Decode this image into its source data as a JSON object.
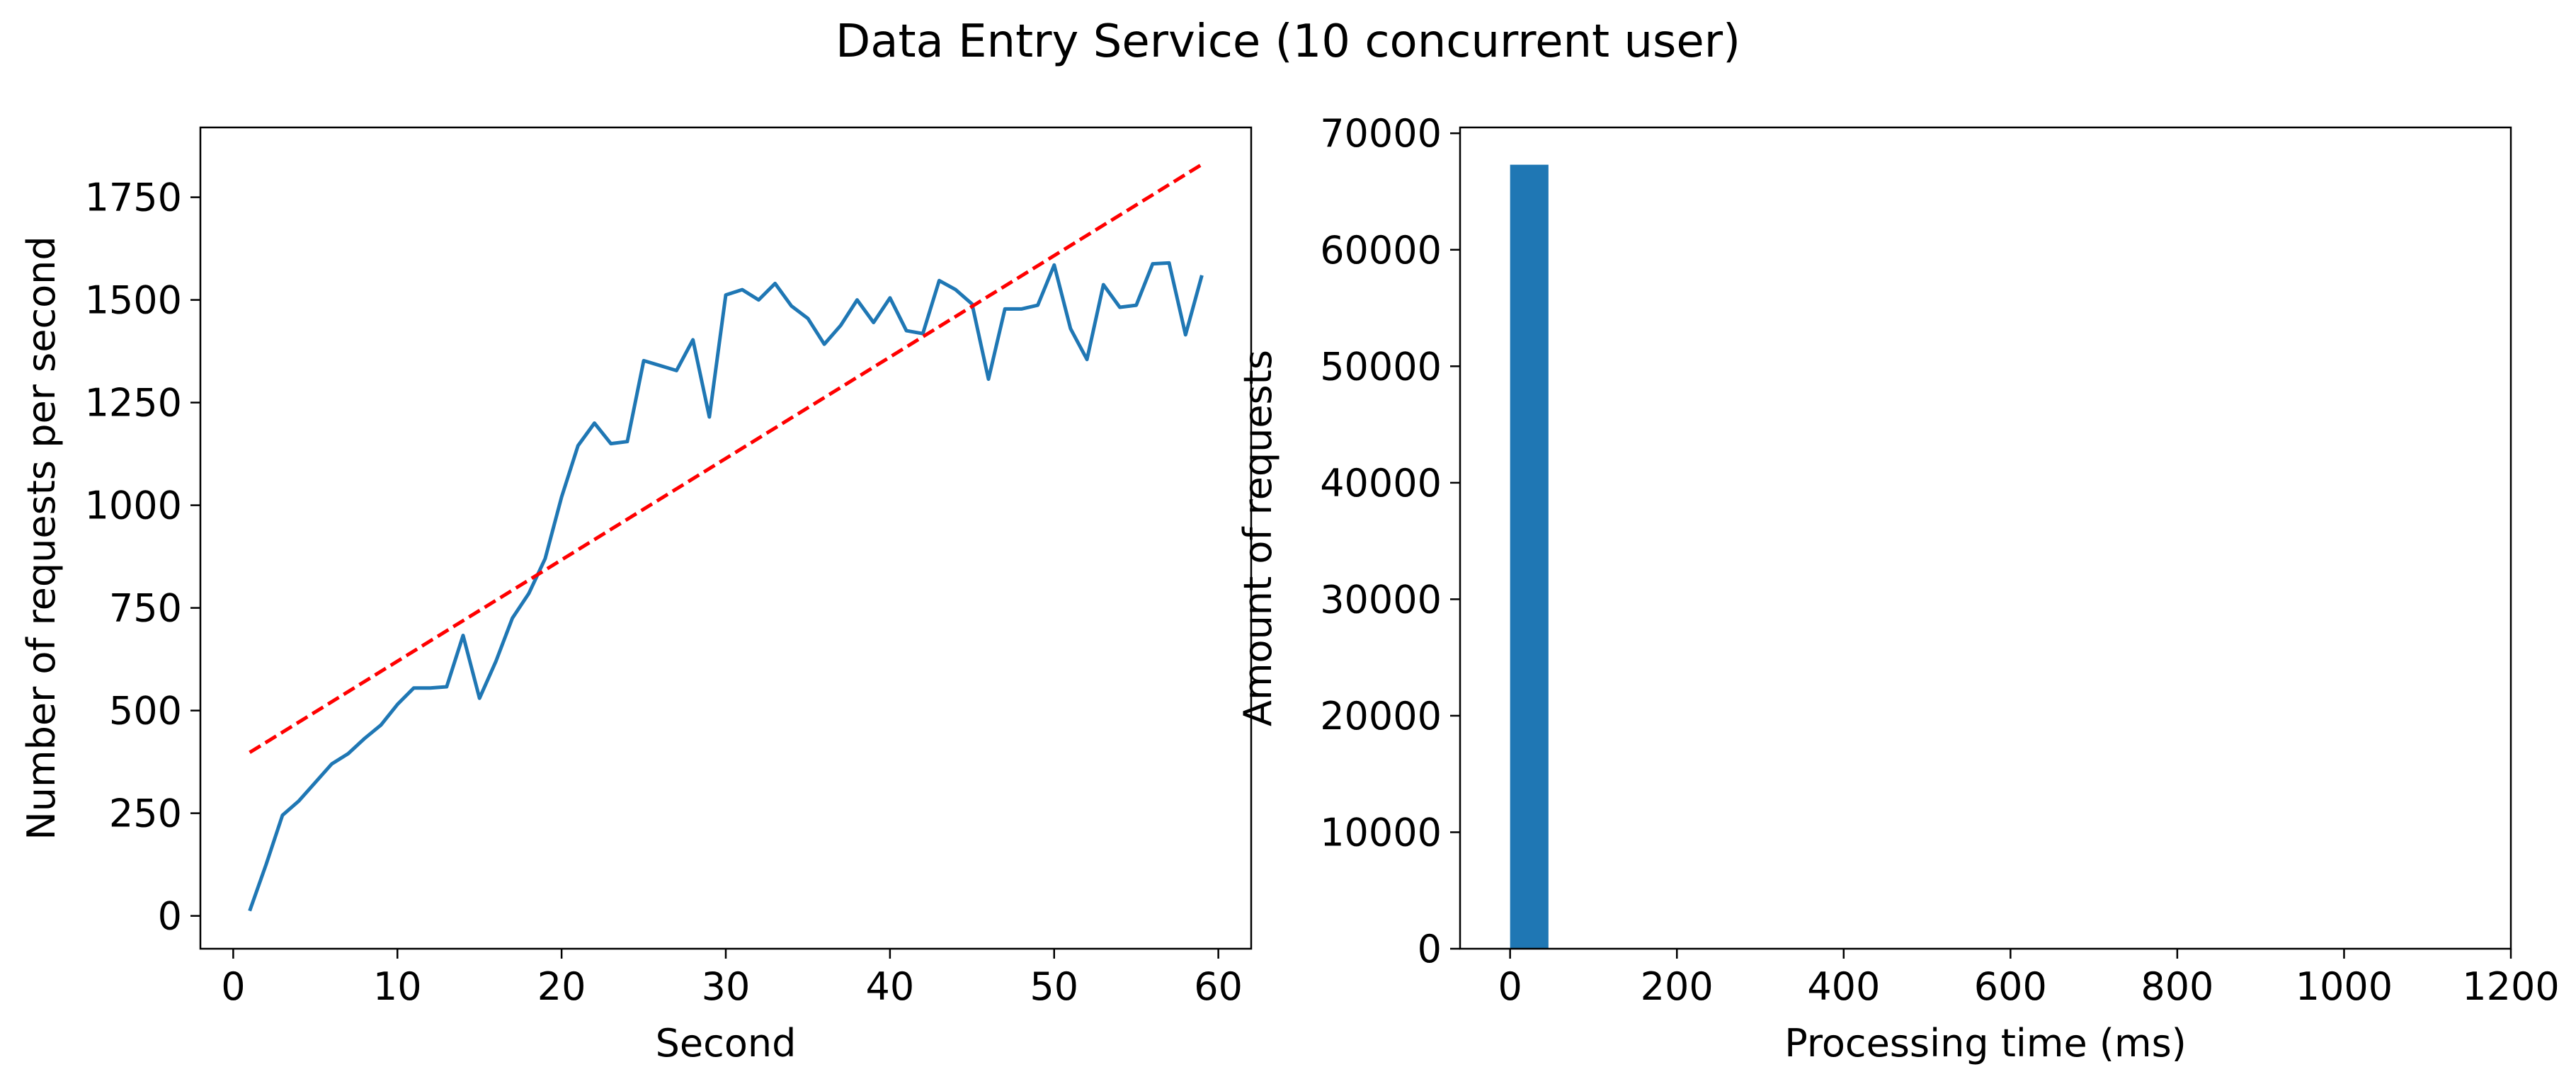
{
  "figure": {
    "suptitle": "Data Entry Service (10 concurrent user)"
  },
  "chart_data": [
    {
      "type": "line",
      "xlabel": "Second",
      "ylabel": "Number of requests per second",
      "xlim": [
        -2,
        62
      ],
      "ylim": [
        -80,
        1920
      ],
      "xticks": [
        0,
        10,
        20,
        30,
        40,
        50,
        60
      ],
      "yticks": [
        0,
        250,
        500,
        750,
        1000,
        1250,
        1500,
        1750
      ],
      "grid": false,
      "series": [
        {
          "style": "solid",
          "color": "#1f77b4",
          "x": [
            1,
            2,
            3,
            4,
            5,
            6,
            7,
            8,
            9,
            10,
            11,
            12,
            13,
            14,
            15,
            16,
            17,
            18,
            19,
            20,
            21,
            22,
            23,
            24,
            25,
            26,
            27,
            28,
            29,
            30,
            31,
            32,
            33,
            34,
            35,
            36,
            37,
            38,
            39,
            40,
            41,
            42,
            43,
            44,
            45,
            46,
            47,
            48,
            49,
            50,
            51,
            52,
            53,
            54,
            55,
            56,
            57,
            58,
            59
          ],
          "y": [
            12,
            125,
            245,
            280,
            325,
            370,
            395,
            432,
            465,
            515,
            555,
            555,
            558,
            683,
            530,
            620,
            725,
            785,
            870,
            1020,
            1145,
            1200,
            1150,
            1155,
            1352,
            1340,
            1328,
            1403,
            1215,
            1512,
            1525,
            1500,
            1540,
            1485,
            1455,
            1392,
            1438,
            1500,
            1445,
            1505,
            1425,
            1418,
            1547,
            1525,
            1490,
            1307,
            1478,
            1478,
            1487,
            1585,
            1430,
            1355,
            1537,
            1482,
            1487,
            1588,
            1590,
            1415,
            1560
          ]
        },
        {
          "style": "dashed",
          "color": "#ff0000",
          "x": [
            1,
            59
          ],
          "y": [
            398,
            1830
          ]
        }
      ]
    },
    {
      "type": "bar",
      "xlabel": "Processing time (ms)",
      "ylabel": "Amount of requests",
      "xlim": [
        -60,
        1200
      ],
      "ylim": [
        0,
        70500
      ],
      "xticks": [
        0,
        200,
        400,
        600,
        800,
        1000,
        1200
      ],
      "yticks": [
        0,
        10000,
        20000,
        30000,
        40000,
        50000,
        60000,
        70000
      ],
      "grid": false,
      "bins": [
        {
          "start": 0,
          "end": 46,
          "value": 67300
        }
      ],
      "color": "#1f77b4"
    }
  ]
}
